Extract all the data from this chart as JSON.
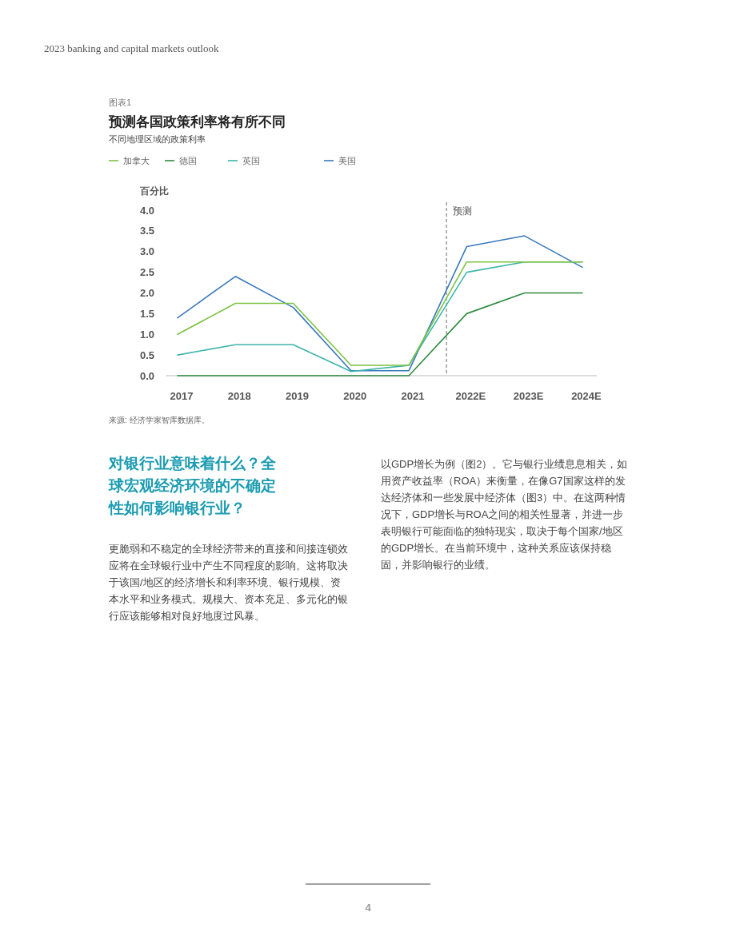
{
  "chart_data": {
    "type": "line",
    "title": "预测各国政策利率将有所不同",
    "subtitle": "不同地理区域的政策利率",
    "ylabel": "百分比",
    "x": [
      2017,
      2018,
      2019,
      2020,
      2021,
      2022,
      2023,
      2024
    ],
    "xlim": [
      2016.8,
      2024.25
    ],
    "xticks": [
      2017,
      2018,
      2019,
      2020,
      2021,
      {
        "value": 2022,
        "label": "2022E"
      },
      {
        "value": 2023,
        "label": "2023E"
      },
      {
        "value": 2024,
        "label": "2024E"
      }
    ],
    "ylim": [
      0,
      4
    ],
    "yticks": [
      {
        "value": 0,
        "label": "0.0"
      },
      {
        "value": 0.5,
        "label": "0.5"
      },
      {
        "value": 1,
        "label": "1.0"
      },
      {
        "value": 1.5,
        "label": "1.5"
      },
      {
        "value": 2,
        "label": "2.0"
      },
      {
        "value": 2.5,
        "label": "2.5"
      },
      {
        "value": 3,
        "label": "3.0"
      },
      {
        "value": 3.5,
        "label": "3.5"
      },
      {
        "value": 4,
        "label": "4.0"
      }
    ],
    "grid": false,
    "legend": "top",
    "marker": "none",
    "line_style": "solid",
    "series": [
      {
        "name": "加拿大",
        "color": "#7cc242",
        "values": [
          1.0,
          1.75,
          1.75,
          0.25,
          0.25,
          2.75,
          2.75,
          2.75
        ]
      },
      {
        "name": "德国",
        "color": "#2e8b3e",
        "values": [
          0,
          0,
          0,
          0,
          0,
          1.5,
          2.0,
          2.0
        ]
      },
      {
        "name": "英国",
        "color": "#3cb5aa",
        "values": [
          0.5,
          0.75,
          0.75,
          0.1,
          0.25,
          2.5,
          2.75,
          2.75
        ]
      },
      {
        "name": "美国",
        "color": "#3a78bd",
        "values": [
          1.4,
          2.4,
          1.65,
          0.12,
          0.12,
          3.12,
          3.38,
          2.62
        ]
      }
    ],
    "ref_lines": [
      {
        "axis": "x",
        "value": 2021.65,
        "label": "预测",
        "color": "#666666",
        "line_style": "dashed"
      }
    ],
    "annotations": [
      "2023 banking and capital markets outlook",
      "图表1",
      "来源: 经济学家智库数据库。",
      "对银行业意味着什么？全球宏观经济环境的不确定性如何影响银行业？",
      "更脆弱和不稳定的全球经济带来的直接和间接连锁效应将在全球银行业中产生不同程度的影响。这将取决于该国/地区的经济增长和利率环境、银行规模、资本水平和业务模式。规模大、资本充足、多元化的银行应该能够相对良好地度过风暴。",
      "以GDP增长为例（图2）。它与银行业绩息息相关，如用资产收益率（ROA）来衡量，在像G7国家这样的发达经济体和一些发展中经济体（图3）中。在这两种情况下，GDP增长与ROA之间的相关性显著，并进一步表明银行可能面临的独特现实，取决于每个国家/地区的GDP增长。在当前环境中，这种关系应该保持稳固，并影响银行的业绩。",
      "4"
    ]
  }
}
